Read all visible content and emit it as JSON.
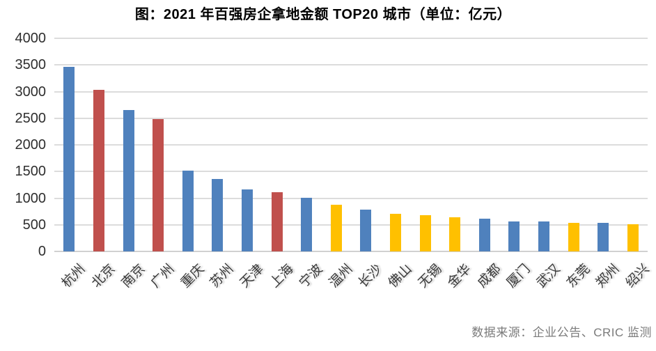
{
  "page": {
    "title": "图：2021 年百强房企拿地金额 TOP20 城市（单位：亿元）",
    "source_note": "数据来源：企业公告、CRIC 监测"
  },
  "chart_data": {
    "type": "bar",
    "title": "图：2021 年百强房企拿地金额 TOP20 城市（单位：亿元）",
    "unit": "亿元",
    "categories": [
      "杭州",
      "北京",
      "南京",
      "广州",
      "重庆",
      "苏州",
      "天津",
      "上海",
      "宁波",
      "温州",
      "长沙",
      "佛山",
      "无锡",
      "金华",
      "成都",
      "厦门",
      "武汉",
      "东莞",
      "郑州",
      "绍兴"
    ],
    "values": [
      3460,
      3030,
      2660,
      2490,
      1520,
      1360,
      1160,
      1110,
      1005,
      870,
      790,
      700,
      680,
      640,
      615,
      565,
      560,
      535,
      530,
      515
    ],
    "bar_colors": [
      "blue",
      "red",
      "blue",
      "red",
      "blue",
      "blue",
      "blue",
      "red",
      "blue",
      "yellow",
      "blue",
      "yellow",
      "yellow",
      "yellow",
      "blue",
      "blue",
      "blue",
      "yellow",
      "blue",
      "yellow"
    ],
    "palette": {
      "blue": "#4F81BD",
      "red": "#C0504D",
      "yellow": "#FFC000"
    },
    "ylim": [
      0,
      4000
    ],
    "yticks": [
      0,
      500,
      1000,
      1500,
      2000,
      2500,
      3000,
      3500,
      4000
    ],
    "grid": "horizontal",
    "legend": "none",
    "xlabel": "",
    "ylabel": "",
    "x_tick_rotation_deg": 45
  },
  "colors": {
    "background": "#FFFFFF",
    "title_text": "#000000",
    "axis_label_text": "#2E2E2E",
    "gridline": "#DCDCDC",
    "source_text": "#7B7B7B"
  }
}
